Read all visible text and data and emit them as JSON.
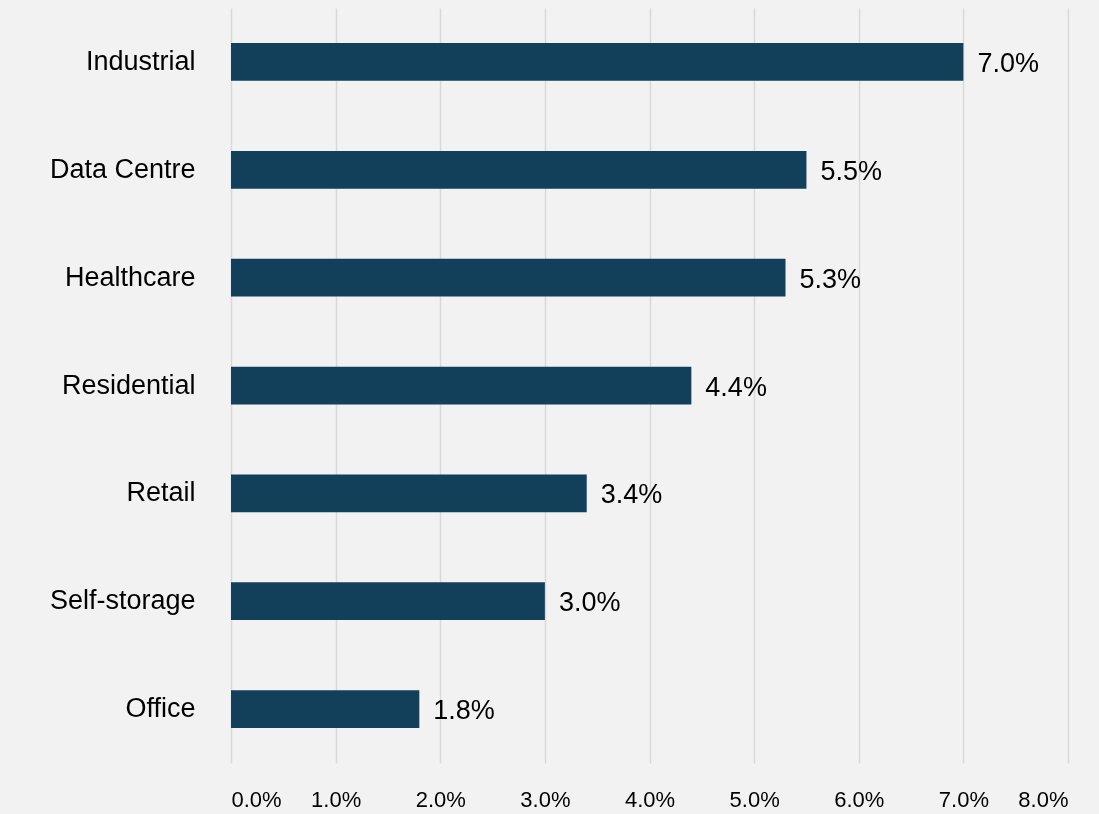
{
  "chart_data": {
    "type": "bar",
    "orientation": "horizontal",
    "categories": [
      "Industrial",
      "Data Centre",
      "Healthcare",
      "Residential",
      "Retail",
      "Self-storage",
      "Office"
    ],
    "values": [
      7.0,
      5.5,
      5.3,
      4.4,
      3.4,
      3.0,
      1.8
    ],
    "value_labels": [
      "7.0%",
      "5.5%",
      "5.3%",
      "4.4%",
      "3.4%",
      "3.0%",
      "1.8%"
    ],
    "color": "#123f5a",
    "xlim": [
      0,
      8
    ],
    "xticks": [
      {
        "value": 0,
        "label": "0.0%"
      },
      {
        "value": 1,
        "label": "1.0%"
      },
      {
        "value": 2,
        "label": "2.0%"
      },
      {
        "value": 3,
        "label": "3.0%"
      },
      {
        "value": 4,
        "label": "4.0%"
      },
      {
        "value": 5,
        "label": "5.0%"
      },
      {
        "value": 6,
        "label": "6.0%"
      },
      {
        "value": 7,
        "label": "7.0%"
      },
      {
        "value": 8,
        "label": "8.0%"
      }
    ],
    "grid": "x"
  }
}
